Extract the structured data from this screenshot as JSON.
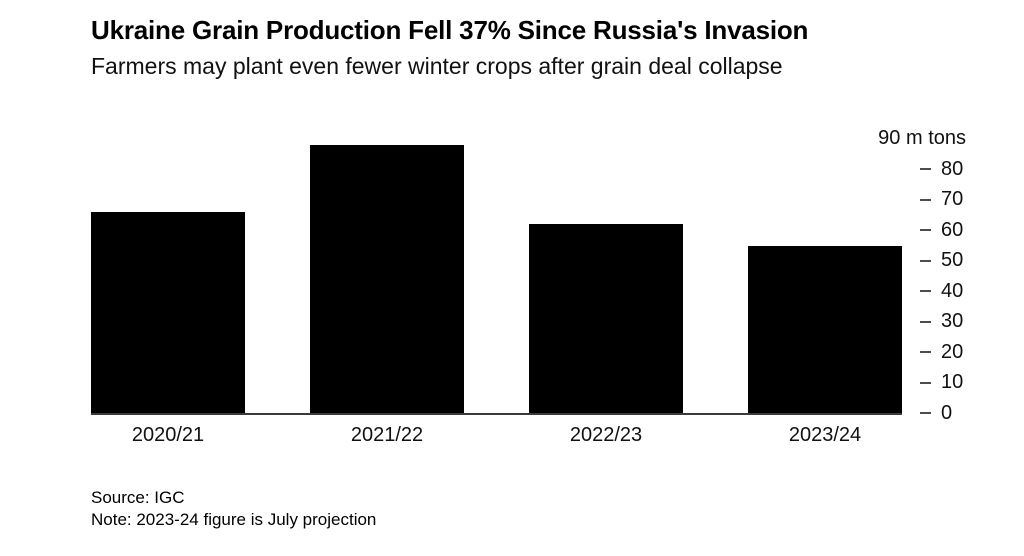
{
  "chart_data": {
    "type": "bar",
    "title": "Ukraine Grain Production Fell 37% Since Russia's Invasion",
    "subtitle": "Farmers may plant even fewer winter crops after grain deal collapse",
    "categories": [
      "2020/21",
      "2021/22",
      "2022/23",
      "2023/24"
    ],
    "values": [
      66,
      88,
      62,
      55
    ],
    "unit_label": "90 m tons",
    "ylabel": "m tons",
    "ylim": [
      0,
      90
    ],
    "yticks": [
      0,
      10,
      20,
      30,
      40,
      50,
      60,
      70,
      80
    ],
    "tick_side": "right",
    "grid": false,
    "legend": false,
    "bar_color": "#000000",
    "background_color": "#ffffff",
    "axis_line_color": "#3a3a3a",
    "tick_dash_color": "#4d4d4d"
  },
  "footer": {
    "source": "Source: IGC",
    "note": "Note: 2023-24 figure is July projection"
  }
}
